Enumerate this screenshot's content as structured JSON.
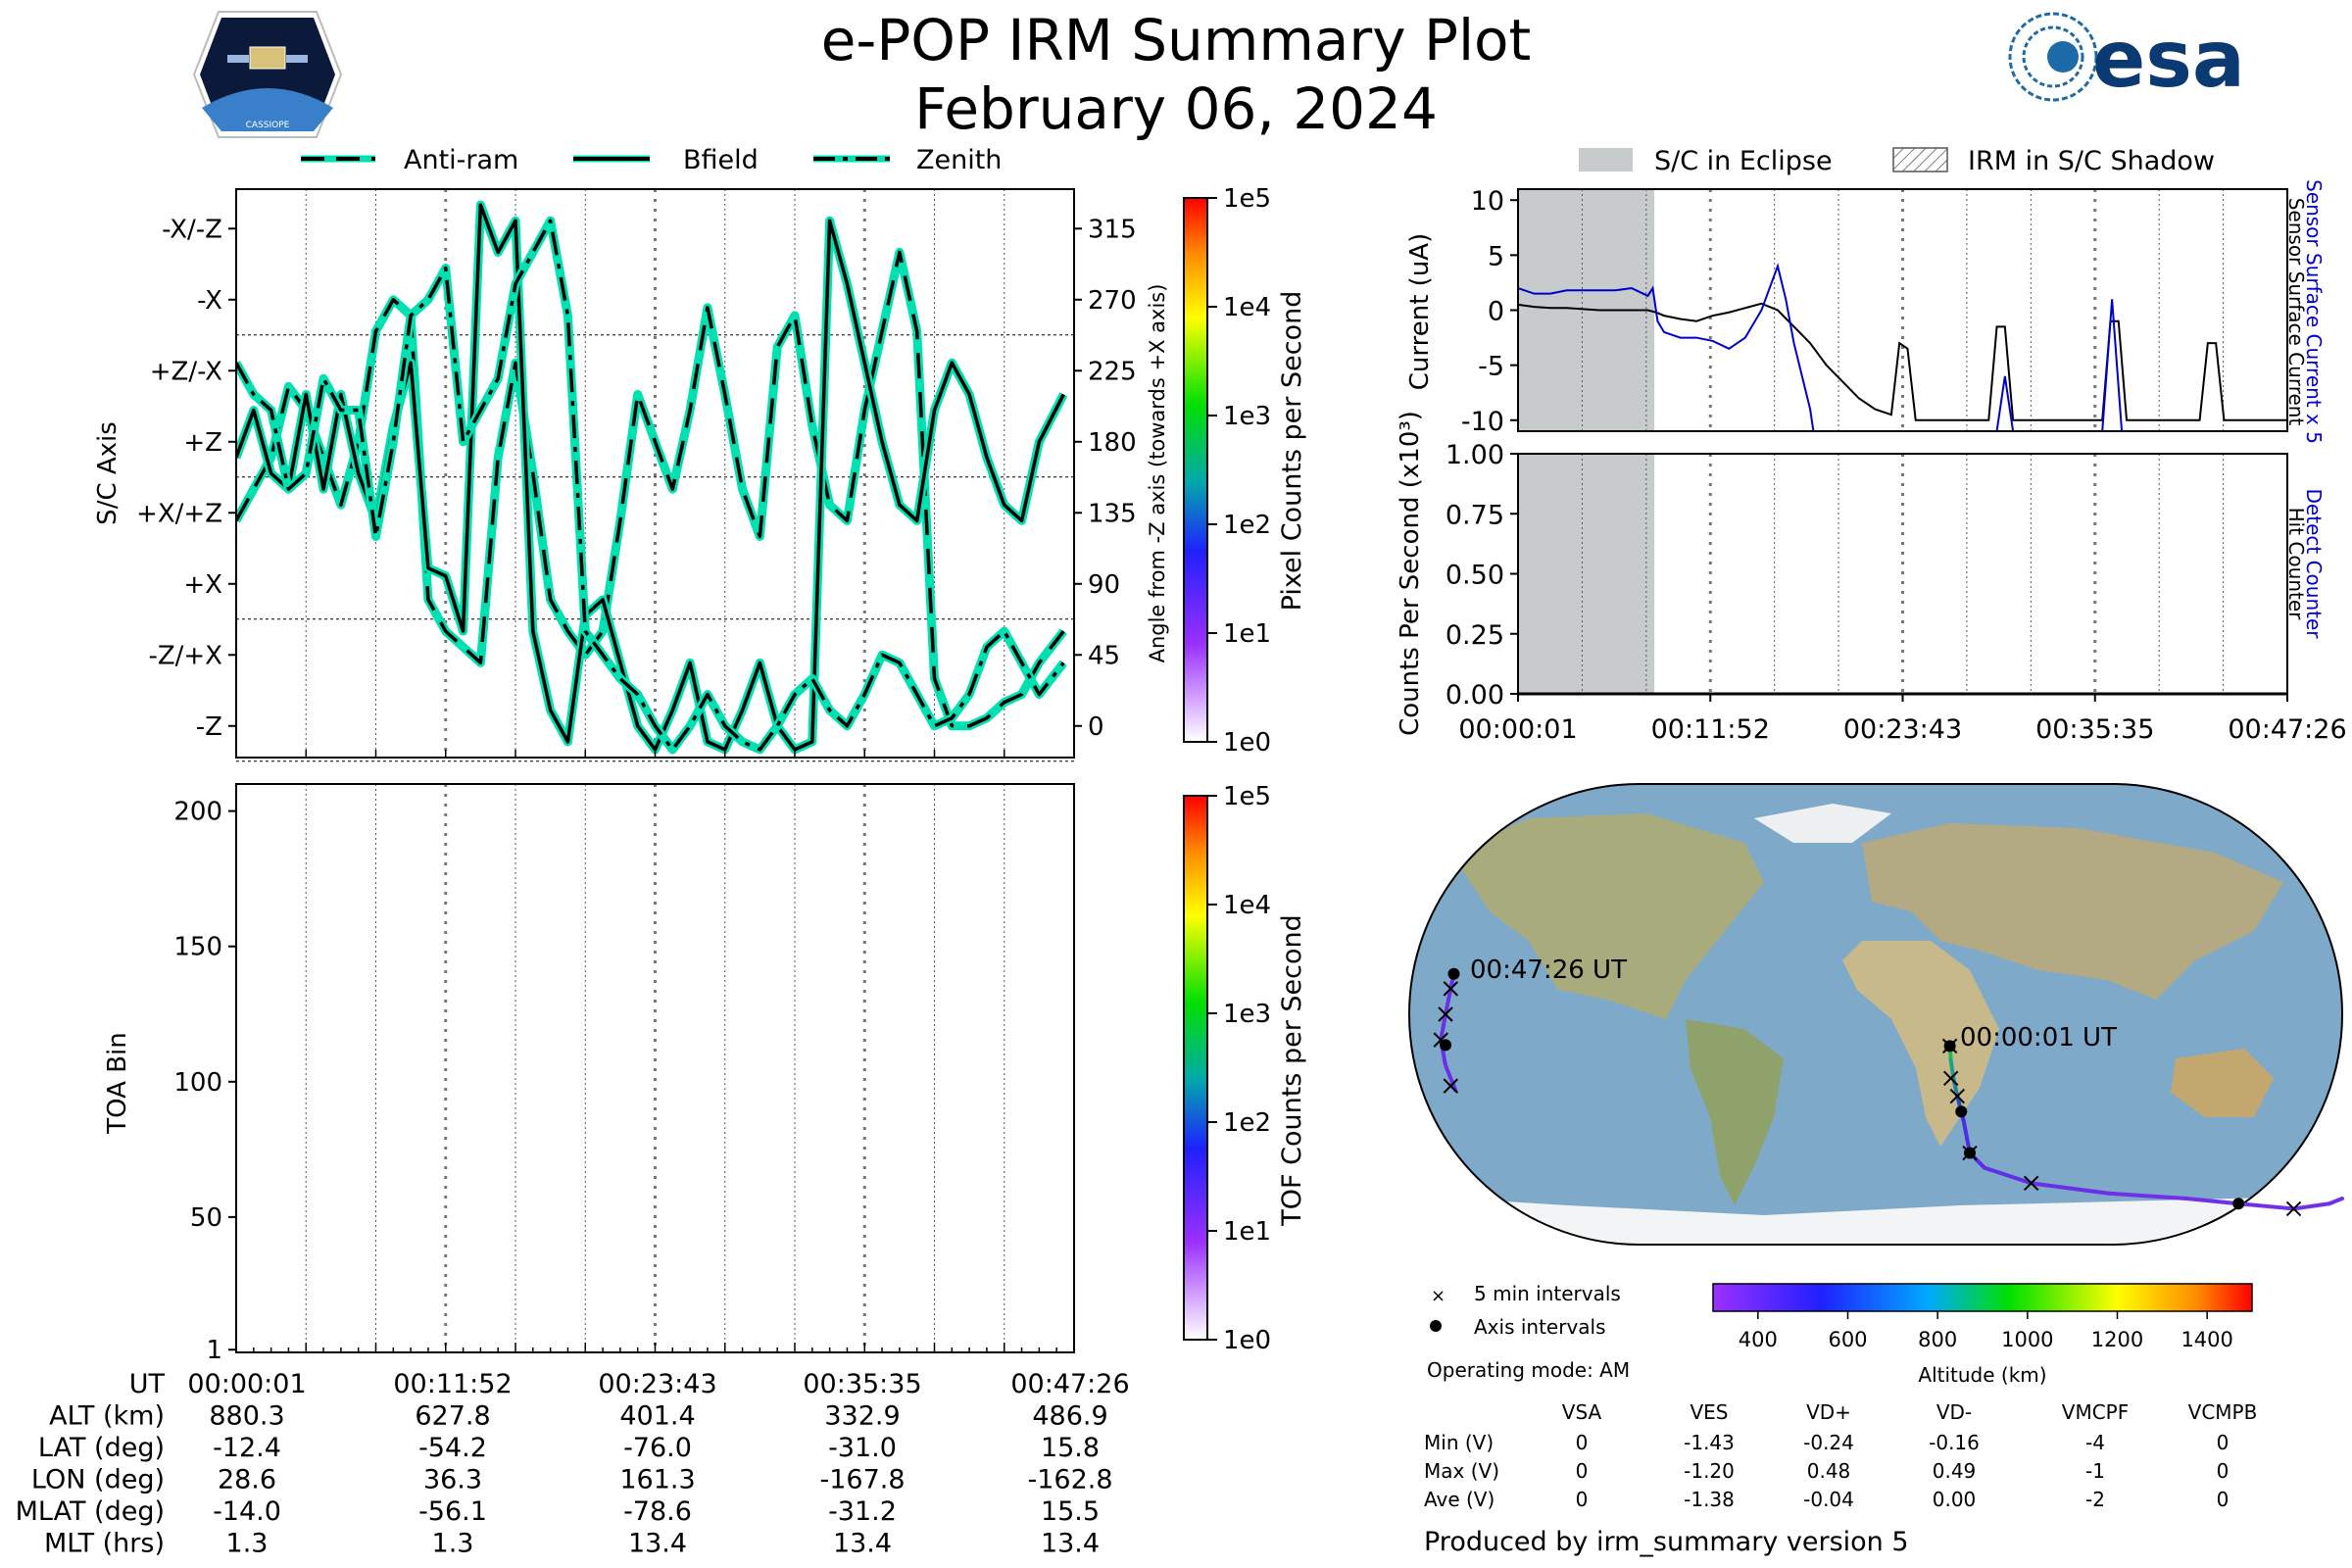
{
  "title": "e-POP IRM Summary Plot",
  "date": "February 06, 2024",
  "logos": {
    "left": "CASSIOPE",
    "right": "esa"
  },
  "legend_top_left": [
    "Anti-ram",
    "Bfield",
    "Zenith"
  ],
  "legend_top_right": [
    "S/C in Eclipse",
    "IRM in S/C Shadow"
  ],
  "chart_data": [
    {
      "id": "sc-axis-angle",
      "type": "line",
      "ylabel": "S/C Axis",
      "ylabel_right": "Angle from -Z axis (towards +X axis)",
      "y_tick_labels": [
        "-X/-Z",
        "-X",
        "+Z/-X",
        "+Z",
        "+X/+Z",
        "+X",
        "-Z/+X",
        "-Z"
      ],
      "y_tick_values": [
        315,
        270,
        225,
        180,
        135,
        90,
        45,
        0
      ],
      "ylim": [
        -20,
        340
      ],
      "xlim_min": [
        0,
        48
      ],
      "series": [
        {
          "name": "Anti-ram",
          "style": "dashed",
          "x": [
            0,
            1,
            2,
            3,
            4,
            5,
            6,
            7,
            8,
            9,
            10,
            11,
            12,
            13,
            14,
            15,
            16,
            17,
            18,
            19,
            20,
            21,
            22,
            23,
            24,
            25,
            26,
            27,
            28,
            29,
            30,
            31,
            32,
            33,
            34,
            35,
            36,
            37,
            38,
            39,
            40,
            41,
            42,
            43,
            44,
            45,
            46,
            47.4
          ],
          "y": [
            130,
            150,
            170,
            215,
            200,
            170,
            140,
            180,
            250,
            270,
            260,
            80,
            60,
            50,
            40,
            170,
            230,
            160,
            80,
            60,
            45,
            60,
            130,
            210,
            180,
            150,
            200,
            265,
            210,
            150,
            120,
            240,
            260,
            190,
            140,
            130,
            200,
            250,
            300,
            250,
            30,
            0,
            0,
            5,
            15,
            20,
            40,
            60
          ]
        },
        {
          "name": "Bfield",
          "style": "solid",
          "x": [
            0,
            1,
            2,
            3,
            4,
            5,
            6,
            7,
            8,
            9,
            10,
            11,
            12,
            13,
            14,
            15,
            16,
            17,
            18,
            19,
            20,
            21,
            22,
            23,
            24,
            25,
            26,
            27,
            28,
            29,
            30,
            31,
            32,
            33,
            34,
            35,
            36,
            37,
            38,
            39,
            40,
            41,
            42,
            43,
            44,
            45,
            46,
            47.4
          ],
          "y": [
            170,
            200,
            160,
            150,
            210,
            150,
            210,
            160,
            130,
            190,
            230,
            100,
            95,
            60,
            330,
            300,
            320,
            60,
            10,
            -10,
            70,
            80,
            40,
            0,
            -15,
            10,
            40,
            -10,
            -15,
            10,
            40,
            0,
            -15,
            -10,
            320,
            280,
            230,
            180,
            140,
            130,
            200,
            230,
            210,
            170,
            140,
            130,
            180,
            210
          ]
        },
        {
          "name": "Zenith",
          "style": "dashdot",
          "x": [
            0,
            1,
            2,
            3,
            4,
            5,
            6,
            7,
            8,
            9,
            10,
            11,
            12,
            13,
            14,
            15,
            16,
            17,
            18,
            19,
            20,
            21,
            22,
            23,
            24,
            25,
            26,
            27,
            28,
            29,
            30,
            31,
            32,
            33,
            34,
            35,
            36,
            37,
            38,
            39,
            40,
            41,
            42,
            43,
            44,
            45,
            46,
            47.4
          ],
          "y": [
            230,
            210,
            200,
            150,
            160,
            220,
            200,
            200,
            120,
            180,
            260,
            270,
            290,
            180,
            200,
            220,
            280,
            300,
            320,
            260,
            60,
            45,
            30,
            20,
            0,
            -15,
            0,
            20,
            0,
            -10,
            -15,
            0,
            20,
            30,
            10,
            0,
            20,
            45,
            40,
            20,
            0,
            5,
            20,
            50,
            60,
            40,
            20,
            40
          ]
        }
      ]
    },
    {
      "id": "toa-spectrogram",
      "type": "heatmap",
      "ylabel": "TOA Bin",
      "y_ticks": [
        1,
        50,
        100,
        150,
        200
      ],
      "ylim": [
        0,
        210
      ],
      "colorbar_label": "TOF Counts per Second",
      "colorbar_ticks": [
        "1e5",
        "1e4",
        "1e3",
        "1e2",
        "1e1",
        "1e0"
      ]
    },
    {
      "id": "pixel-colorbar",
      "type": "heatmap",
      "colorbar_label": "Pixel Counts per Second",
      "colorbar_ticks": [
        "1e5",
        "1e4",
        "1e3",
        "1e2",
        "1e1",
        "1e0"
      ]
    },
    {
      "id": "sensor-current",
      "type": "line",
      "ylabel": "Current (uA)",
      "ylabel_right_1": "Sensor Surface Current x 5",
      "ylabel_right_2": "Sensor Surface Current",
      "y_ticks": [
        10,
        5,
        0,
        -5,
        -10
      ],
      "ylim": [
        -11,
        11
      ],
      "xlim_min": [
        0,
        47.4
      ],
      "eclipse_min": [
        0,
        8.4
      ],
      "series": [
        {
          "name": "Sensor Surface Current",
          "color": "#000000",
          "x": [
            0,
            1,
            2,
            3,
            4,
            5,
            6,
            7,
            8,
            8.5,
            9,
            10,
            11,
            12,
            13,
            14,
            15,
            16,
            17,
            18,
            19,
            20,
            21,
            22,
            23,
            23.5,
            24,
            24.5,
            25,
            26,
            27,
            28,
            29,
            29.5,
            30,
            30.5,
            31,
            32,
            33,
            34,
            35,
            36,
            36.5,
            37,
            37.5,
            38,
            39,
            40,
            41,
            42,
            42.5,
            43,
            43.5,
            44,
            45,
            46,
            47.4
          ],
          "y": [
            0.5,
            0.3,
            0.2,
            0.2,
            0.1,
            0,
            0,
            0,
            0,
            -0.2,
            -0.5,
            -0.8,
            -1,
            -0.5,
            -0.2,
            0.2,
            0.6,
            0,
            -1.5,
            -3,
            -5,
            -6.5,
            -8,
            -9,
            -9.5,
            -3,
            -3.5,
            -10,
            -10,
            -10,
            -10,
            -10,
            -10,
            -1.5,
            -1.5,
            -10,
            -10,
            -10,
            -10,
            -10,
            -10,
            -10,
            -1,
            -1,
            -10,
            -10,
            -10,
            -10,
            -10,
            -10,
            -3,
            -3,
            -10,
            -10,
            -10,
            -10,
            -10
          ]
        },
        {
          "name": "Sensor Surface Current x 5",
          "color": "#0000cc",
          "x": [
            0,
            1,
            2,
            3,
            4,
            5,
            6,
            7,
            8,
            8.3,
            8.6,
            9,
            10,
            11,
            12,
            13,
            14,
            15,
            15.5,
            16,
            16.5,
            17,
            17.5,
            18,
            18.2,
            29.5,
            30,
            30.5,
            36,
            36.6,
            37.2
          ],
          "y": [
            2,
            1.5,
            1.5,
            1.8,
            1.8,
            1.8,
            1.8,
            2,
            1.3,
            2,
            -1,
            -2,
            -2.5,
            -2.5,
            -2.8,
            -3.5,
            -2.5,
            0,
            2,
            4,
            1,
            -3,
            -6,
            -9,
            -11,
            -11,
            -6,
            -11,
            -11,
            1,
            -11
          ]
        }
      ]
    },
    {
      "id": "counts-per-second",
      "type": "line",
      "ylabel": "Counts Per Second (x10³)",
      "ylabel_right_1": "Detect Counter",
      "ylabel_right_2": "Hit Counter",
      "y_ticks": [
        "1.00",
        "0.75",
        "0.50",
        "0.25",
        "0.00"
      ],
      "ylim": [
        0,
        1
      ],
      "x_tick_labels": [
        "00:00:01",
        "00:11:52",
        "00:23:43",
        "00:35:35",
        "00:47:26"
      ],
      "series": [
        {
          "name": "Detect Counter",
          "color": "#0000cc",
          "x": [
            0,
            47.4
          ],
          "y": [
            0,
            0
          ]
        },
        {
          "name": "Hit Counter",
          "color": "#000000",
          "x": [
            0,
            47.4
          ],
          "y": [
            0,
            0
          ]
        }
      ]
    },
    {
      "id": "orbit-map",
      "type": "scatter",
      "label_start": "00:00:01 UT",
      "label_end": "00:47:26 UT",
      "legend": [
        "5 min intervals",
        "Axis intervals"
      ],
      "colorbar_label": "Altitude (km)",
      "colorbar_ticks": [
        "400",
        "600",
        "800",
        "1000",
        "1200",
        "1400"
      ],
      "track_lon": [
        28.6,
        29,
        30,
        31.5,
        33,
        34,
        36.3,
        42,
        60,
        90,
        120,
        140,
        161.3,
        175,
        180
      ],
      "track_lat": [
        -12.4,
        -18,
        -25,
        -32,
        -38,
        -42,
        -54.2,
        -60,
        -66,
        -70,
        -72,
        -74,
        -76,
        -74,
        -72
      ]
    }
  ],
  "time_axis_labels": [
    "00:00:01",
    "00:11:52",
    "00:23:43",
    "00:35:35",
    "00:47:26"
  ],
  "ephemeris": {
    "rows": [
      {
        "label": "UT",
        "values": [
          "00:00:01",
          "00:11:52",
          "00:23:43",
          "00:35:35",
          "00:47:26"
        ]
      },
      {
        "label": "ALT (km)",
        "values": [
          "880.3",
          "627.8",
          "401.4",
          "332.9",
          "486.9"
        ]
      },
      {
        "label": "LAT (deg)",
        "values": [
          "-12.4",
          "-54.2",
          "-76.0",
          "-31.0",
          "15.8"
        ]
      },
      {
        "label": "LON (deg)",
        "values": [
          "28.6",
          "36.3",
          "161.3",
          "-167.8",
          "-162.8"
        ]
      },
      {
        "label": "MLAT (deg)",
        "values": [
          "-14.0",
          "-56.1",
          "-78.6",
          "-31.2",
          "15.5"
        ]
      },
      {
        "label": "MLT (hrs)",
        "values": [
          "1.3",
          "1.3",
          "13.4",
          "13.4",
          "13.4"
        ]
      }
    ]
  },
  "operating_mode": "Operating mode: AM",
  "voltages": {
    "headers": [
      "VSA",
      "VES",
      "VD+",
      "VD-",
      "VMCPF",
      "VCMPB"
    ],
    "rows": [
      {
        "label": "Min (V)",
        "values": [
          "0",
          "-1.43",
          "-0.24",
          "-0.16",
          "-4",
          "0"
        ]
      },
      {
        "label": "Max (V)",
        "values": [
          "0",
          "-1.20",
          "0.48",
          "0.49",
          "-1",
          "0"
        ]
      },
      {
        "label": "Ave (V)",
        "values": [
          "0",
          "-1.38",
          "-0.04",
          "0.00",
          "-2",
          "0"
        ]
      }
    ]
  },
  "footer": "Produced by irm_summary version 5",
  "colors": {
    "teal": "#00e0b0",
    "eclipse": "#c8cbcc",
    "detect": "#0000cc"
  }
}
